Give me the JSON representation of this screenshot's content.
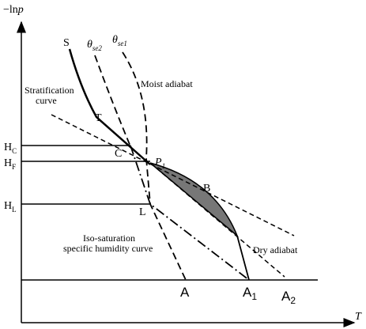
{
  "axes": {
    "y_label": {
      "prefix": "−ln",
      "var": "p"
    },
    "x_label": "T"
  },
  "labels": {
    "S": "S",
    "theta_se2": {
      "main": "θ",
      "sub": "se2"
    },
    "theta_se1": {
      "main": "θ",
      "sub": "se1"
    },
    "moist_adiabat": "Moist adiabat",
    "stratification": [
      "Stratification",
      "curve"
    ],
    "T": "T",
    "C": "C",
    "P1": {
      "main": "P",
      "sub": "1"
    },
    "B": "B",
    "L": "L",
    "HC": {
      "main": "H",
      "sub": "C"
    },
    "HF": {
      "main": "H",
      "sub": "F"
    },
    "HL": {
      "main": "H",
      "sub": "L"
    },
    "iso_saturation": [
      "Iso-saturation",
      "specific humidity curve"
    ],
    "dry_adiabat": "Dry adiabat",
    "A": "A",
    "A1": {
      "main": "A",
      "sub": "1"
    },
    "A2": {
      "main": "A",
      "sub": "2"
    }
  }
}
